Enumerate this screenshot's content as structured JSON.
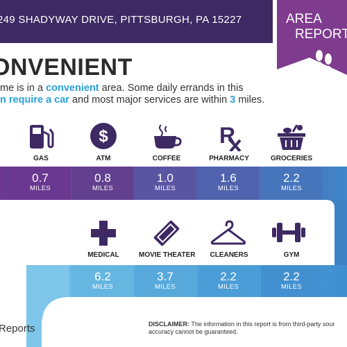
{
  "header": {
    "address": "249 SHADYWAY DRIVE, PITTSBURGH, PA 15227",
    "badge_line1": "AREA",
    "badge_line2": "REPORT"
  },
  "headline": "ONVENIENT",
  "description": {
    "p1": "me is in a ",
    "p1_hl": "convenient",
    "p1_end": " area. Some daily errands in this",
    "p2_hl": "n require a car",
    "p2_mid": " and most major services are within ",
    "p2_num": "3",
    "p2_end": " miles."
  },
  "row1": [
    {
      "label": "GAS",
      "icon": "gas-pump-icon",
      "value": "0.7",
      "unit": "MILES"
    },
    {
      "label": "ATM",
      "icon": "dollar-icon",
      "value": "0.8",
      "unit": "MILES"
    },
    {
      "label": "COFFEE",
      "icon": "coffee-cup-icon",
      "value": "1.0",
      "unit": "MILES"
    },
    {
      "label": "PHARMACY",
      "icon": "rx-icon",
      "value": "1.6",
      "unit": "MILES"
    },
    {
      "label": "GROCERIES",
      "icon": "grocery-basket-icon",
      "value": "2.2",
      "unit": "MILES"
    }
  ],
  "row2": [
    {
      "label": "MEDICAL",
      "icon": "medical-cross-icon",
      "value": "6.2",
      "unit": "MILES"
    },
    {
      "label": "MOVIE THEATER",
      "icon": "ticket-icon",
      "value": "3.7",
      "unit": "MILES"
    },
    {
      "label": "CLEANERS",
      "icon": "hanger-icon",
      "value": "2.2",
      "unit": "MILES"
    },
    {
      "label": "GYM",
      "icon": "dumbbell-icon",
      "value": "2.2",
      "unit": "MILES"
    }
  ],
  "footer": {
    "left": "Reports",
    "disclaimer_label": "DISCLAIMER:",
    "disclaimer_text": " The information in this report is from third-party sour",
    "disclaimer_text2": "accuracy cannot be guaranteed."
  },
  "colors": {
    "header": "#3d2a63",
    "badge": "#7f3b8e",
    "icon": "#3d2a63",
    "accent": "#2aa2d8"
  }
}
